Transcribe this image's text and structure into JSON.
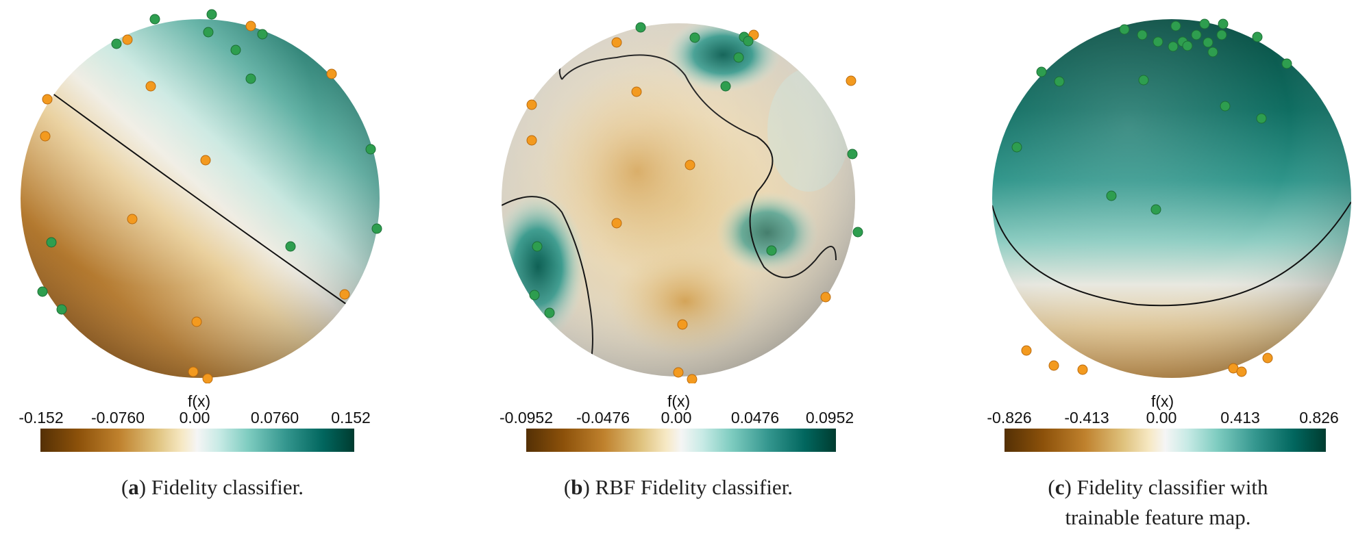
{
  "chart_data": [
    {
      "type": "heatmap",
      "label": "a",
      "caption": "Fidelity classifier.",
      "colorbar_title": "f(x)",
      "colorbar_ticks": [
        "-0.152",
        "-0.0760",
        "0.00",
        "0.0760",
        "0.152"
      ],
      "colorbar_range": [
        -0.152,
        0.152
      ],
      "colormap": [
        "#543005",
        "#8c510a",
        "#dfc27d",
        "#f5f5f5",
        "#80cdc1",
        "#01665e",
        "#003c30"
      ],
      "classes": [
        {
          "name": "",
          "color": "#2e9e4f"
        },
        {
          "name": "",
          "color": "#f39a1f"
        }
      ],
      "decision_boundary": "f(x) = 0"
    },
    {
      "type": "heatmap",
      "label": "b",
      "caption": "RBF Fidelity classifier.",
      "colorbar_title": "f(x)",
      "colorbar_ticks": [
        "-0.0952",
        "-0.0476",
        "0.00",
        "0.0476",
        "0.0952"
      ],
      "colorbar_range": [
        -0.0952,
        0.0952
      ],
      "colormap": [
        "#543005",
        "#8c510a",
        "#dfc27d",
        "#f5f5f5",
        "#80cdc1",
        "#01665e",
        "#003c30"
      ],
      "classes": [
        {
          "name": "",
          "color": "#2e9e4f"
        },
        {
          "name": "",
          "color": "#f39a1f"
        }
      ],
      "decision_boundary": "f(x) = 0"
    },
    {
      "type": "heatmap",
      "label": "c",
      "caption": "Fidelity classifier with trainable feature map.",
      "colorbar_title": "f(x)",
      "colorbar_ticks": [
        "-0.826",
        "-0.413",
        "0.00",
        "0.413",
        "0.826"
      ],
      "colorbar_range": [
        -0.826,
        0.826
      ],
      "colormap": [
        "#543005",
        "#8c510a",
        "#dfc27d",
        "#f5f5f5",
        "#80cdc1",
        "#01665e",
        "#003c30"
      ],
      "classes": [
        {
          "name": "",
          "color": "#2e9e4f"
        },
        {
          "name": "",
          "color": "#f39a1f"
        }
      ],
      "decision_boundary": "f(x) = 0"
    }
  ],
  "captions": [
    {
      "label": "a",
      "text": "Fidelity classifier."
    },
    {
      "label": "b",
      "text": "RBF Fidelity classifier."
    },
    {
      "label": "c",
      "line1": "Fidelity classifier with",
      "line2": "trainable feature map."
    }
  ]
}
